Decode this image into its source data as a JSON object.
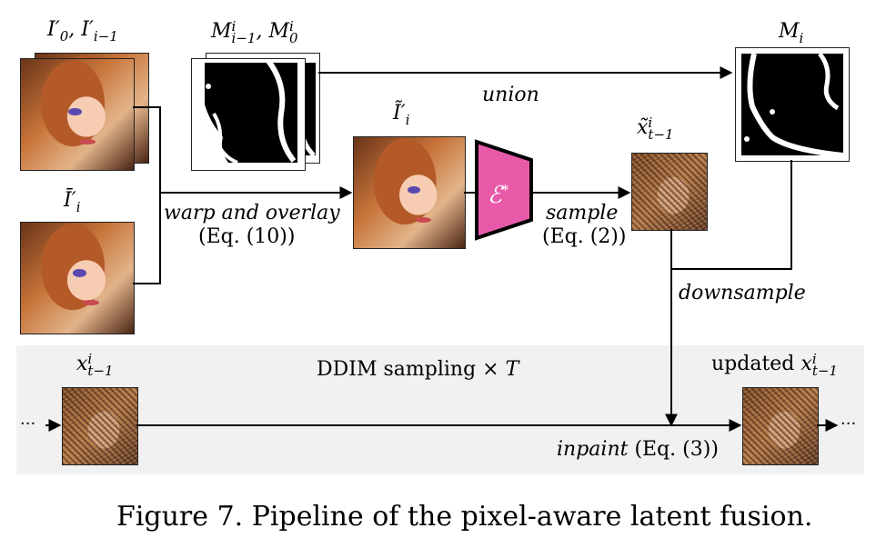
{
  "labels": {
    "inputs_prev": "I′₀, I′ᵢ₋₁",
    "input_cur": "Ī′ᵢ",
    "masks": "Mᵢ₋₁, M₀",
    "mask_out": "Mᵢ",
    "warped": "Ĩ′ᵢ",
    "encoder": "ℰ*",
    "latent_sample": "x̃ᵢₜ₋₁",
    "latent_in": "xᵢₜ₋₁",
    "latent_out_prefix": "updated",
    "latent_out_var": "xᵢₜ₋₁"
  },
  "edges": {
    "union": "union",
    "warp": "warp and overlay",
    "warp_eq": "(Eq. (10))",
    "sample": "sample",
    "sample_eq": "(Eq. (2))",
    "downsample": "downsample",
    "inpaint": "inpaint",
    "inpaint_eq": "(Eq. (3))",
    "ellipsis_left": "···",
    "ellipsis_right": "···"
  },
  "band": {
    "title": "DDIM sampling × T"
  },
  "caption": "Figure 7. Pipeline of the pixel-aware latent fusion.",
  "colors": {
    "encoder_fill": "#e85aa8",
    "band_bg": "#f1f1f1"
  }
}
